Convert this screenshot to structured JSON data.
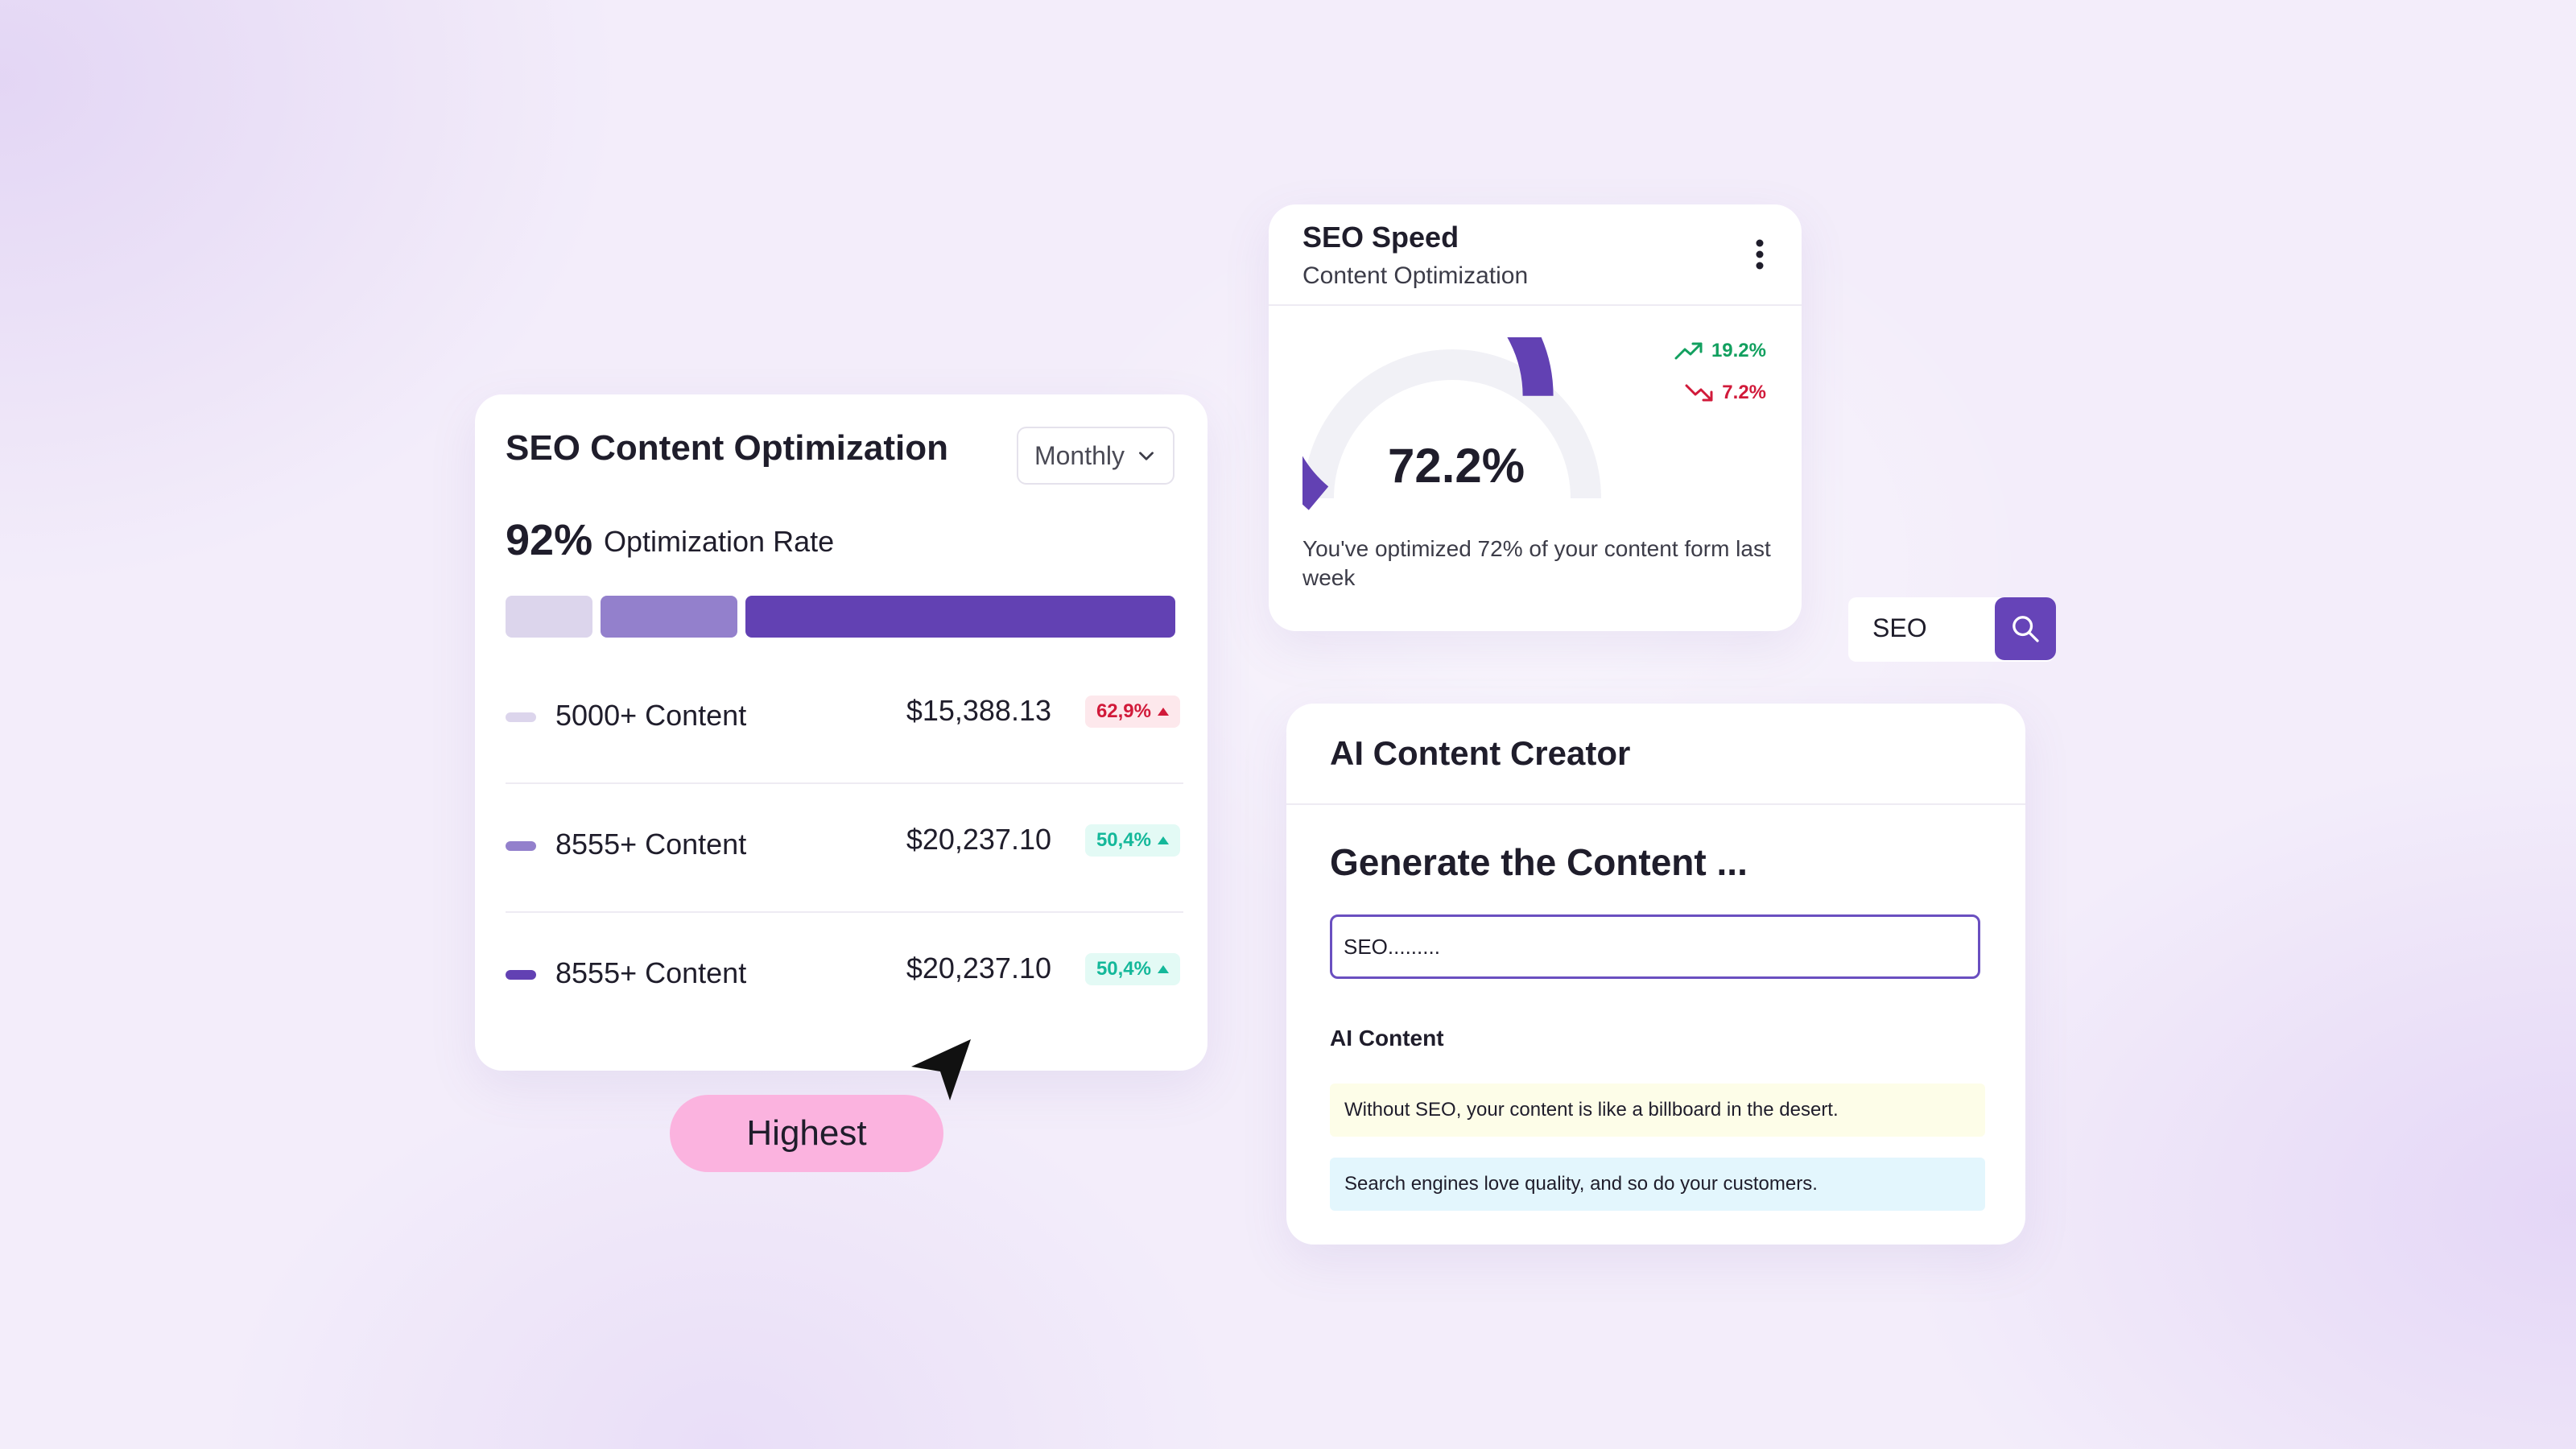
{
  "optimization_card": {
    "title": "SEO Content Optimization",
    "period_dropdown": "Monthly",
    "rate_value": "92%",
    "rate_label": "Optimization Rate",
    "rows": [
      {
        "label": "5000+ Content",
        "amount": "$15,388.13",
        "change": "62,9%",
        "trend": "red",
        "marker_color": "#dcd5ec"
      },
      {
        "label": "8555+ Content",
        "amount": "$20,237.10",
        "change": "50,4%",
        "trend": "green",
        "marker_color": "#9380cc"
      },
      {
        "label": "8555+ Content",
        "amount": "$20,237.10",
        "change": "50,4%",
        "trend": "green",
        "marker_color": "#6241b3"
      }
    ],
    "segment_colors": [
      "#dcd5ec",
      "#9380cc",
      "#6241b3"
    ]
  },
  "highest_pill": "Highest",
  "speed_card": {
    "title": "SEO Speed",
    "subtitle": "Content Optimization",
    "gauge_value": "72.2%",
    "gauge_fraction": 0.722,
    "trend_up": "19.2%",
    "trend_down": "7.2%",
    "note": "You've optimized  72% of your content form last week"
  },
  "search": {
    "value": "SEO"
  },
  "ai_card": {
    "title": "AI Content Creator",
    "heading": "Generate the Content ...",
    "input_value": "SEO.........",
    "section_label": "AI Content",
    "suggestions": [
      "Without SEO, your content is like a billboard in the desert.",
      "Search engines love quality, and so do your customers."
    ]
  },
  "colors": {
    "accent": "#6241b3",
    "pill": "#fbb3df",
    "positive": "#12a05f",
    "negative": "#d11a3a"
  }
}
